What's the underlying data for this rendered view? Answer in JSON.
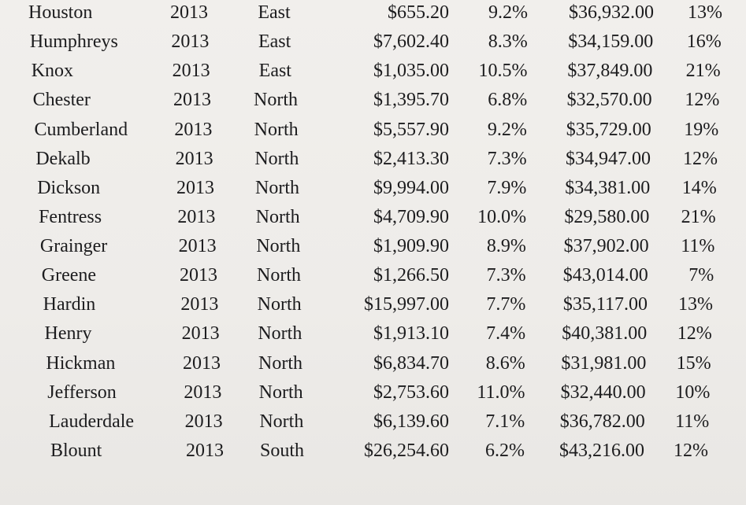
{
  "table": {
    "rows": [
      {
        "county": "Houston",
        "year": "2013",
        "region": "East",
        "amount": "$655.20",
        "rate": "9.2%",
        "income": "$36,932.00",
        "pct": "13%"
      },
      {
        "county": "Humphreys",
        "year": "2013",
        "region": "East",
        "amount": "$7,602.40",
        "rate": "8.3%",
        "income": "$34,159.00",
        "pct": "16%"
      },
      {
        "county": "Knox",
        "year": "2013",
        "region": "East",
        "amount": "$1,035.00",
        "rate": "10.5%",
        "income": "$37,849.00",
        "pct": "21%"
      },
      {
        "county": "Chester",
        "year": "2013",
        "region": "North",
        "amount": "$1,395.70",
        "rate": "6.8%",
        "income": "$32,570.00",
        "pct": "12%"
      },
      {
        "county": "Cumberland",
        "year": "2013",
        "region": "North",
        "amount": "$5,557.90",
        "rate": "9.2%",
        "income": "$35,729.00",
        "pct": "19%"
      },
      {
        "county": "Dekalb",
        "year": "2013",
        "region": "North",
        "amount": "$2,413.30",
        "rate": "7.3%",
        "income": "$34,947.00",
        "pct": "12%"
      },
      {
        "county": "Dickson",
        "year": "2013",
        "region": "North",
        "amount": "$9,994.00",
        "rate": "7.9%",
        "income": "$34,381.00",
        "pct": "14%"
      },
      {
        "county": "Fentress",
        "year": "2013",
        "region": "North",
        "amount": "$4,709.90",
        "rate": "10.0%",
        "income": "$29,580.00",
        "pct": "21%"
      },
      {
        "county": "Grainger",
        "year": "2013",
        "region": "North",
        "amount": "$1,909.90",
        "rate": "8.9%",
        "income": "$37,902.00",
        "pct": "11%"
      },
      {
        "county": "Greene",
        "year": "2013",
        "region": "North",
        "amount": "$1,266.50",
        "rate": "7.3%",
        "income": "$43,014.00",
        "pct": "7%"
      },
      {
        "county": "Hardin",
        "year": "2013",
        "region": "North",
        "amount": "$15,997.00",
        "rate": "7.7%",
        "income": "$35,117.00",
        "pct": "13%"
      },
      {
        "county": "Henry",
        "year": "2013",
        "region": "North",
        "amount": "$1,913.10",
        "rate": "7.4%",
        "income": "$40,381.00",
        "pct": "12%"
      },
      {
        "county": "Hickman",
        "year": "2013",
        "region": "North",
        "amount": "$6,834.70",
        "rate": "8.6%",
        "income": "$31,981.00",
        "pct": "15%"
      },
      {
        "county": "Jefferson",
        "year": "2013",
        "region": "North",
        "amount": "$2,753.60",
        "rate": "11.0%",
        "income": "$32,440.00",
        "pct": "10%"
      },
      {
        "county": "Lauderdale",
        "year": "2013",
        "region": "North",
        "amount": "$6,139.60",
        "rate": "7.1%",
        "income": "$36,782.00",
        "pct": "11%"
      },
      {
        "county": "Blount",
        "year": "2013",
        "region": "South",
        "amount": "$26,254.60",
        "rate": "6.2%",
        "income": "$43,216.00",
        "pct": "12%"
      }
    ]
  }
}
